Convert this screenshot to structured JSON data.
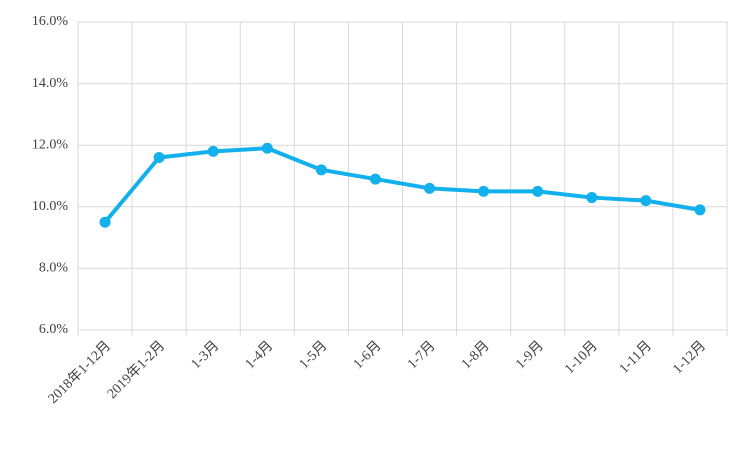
{
  "chart_data": {
    "type": "line",
    "categories": [
      "2018年1-12月",
      "2019年1-2月",
      "1-3月",
      "1-4月",
      "1-5月",
      "1-6月",
      "1-7月",
      "1-8月",
      "1-9月",
      "1-10月",
      "1-11月",
      "1-12月"
    ],
    "series": [
      {
        "color": "#12b0ec",
        "values": [
          9.5,
          11.6,
          11.8,
          11.9,
          11.2,
          10.9,
          10.6,
          10.5,
          10.5,
          10.3,
          10.2,
          9.9
        ]
      }
    ],
    "ylim": [
      6,
      16
    ],
    "yticks": [
      {
        "value": 6,
        "label": "6.0%"
      },
      {
        "value": 8,
        "label": "8.0%"
      },
      {
        "value": 10,
        "label": "10.0%"
      },
      {
        "value": 12,
        "label": "12.0%"
      },
      {
        "value": 14,
        "label": "14.0%"
      },
      {
        "value": 16,
        "label": "16.0%"
      }
    ],
    "grid": true
  }
}
